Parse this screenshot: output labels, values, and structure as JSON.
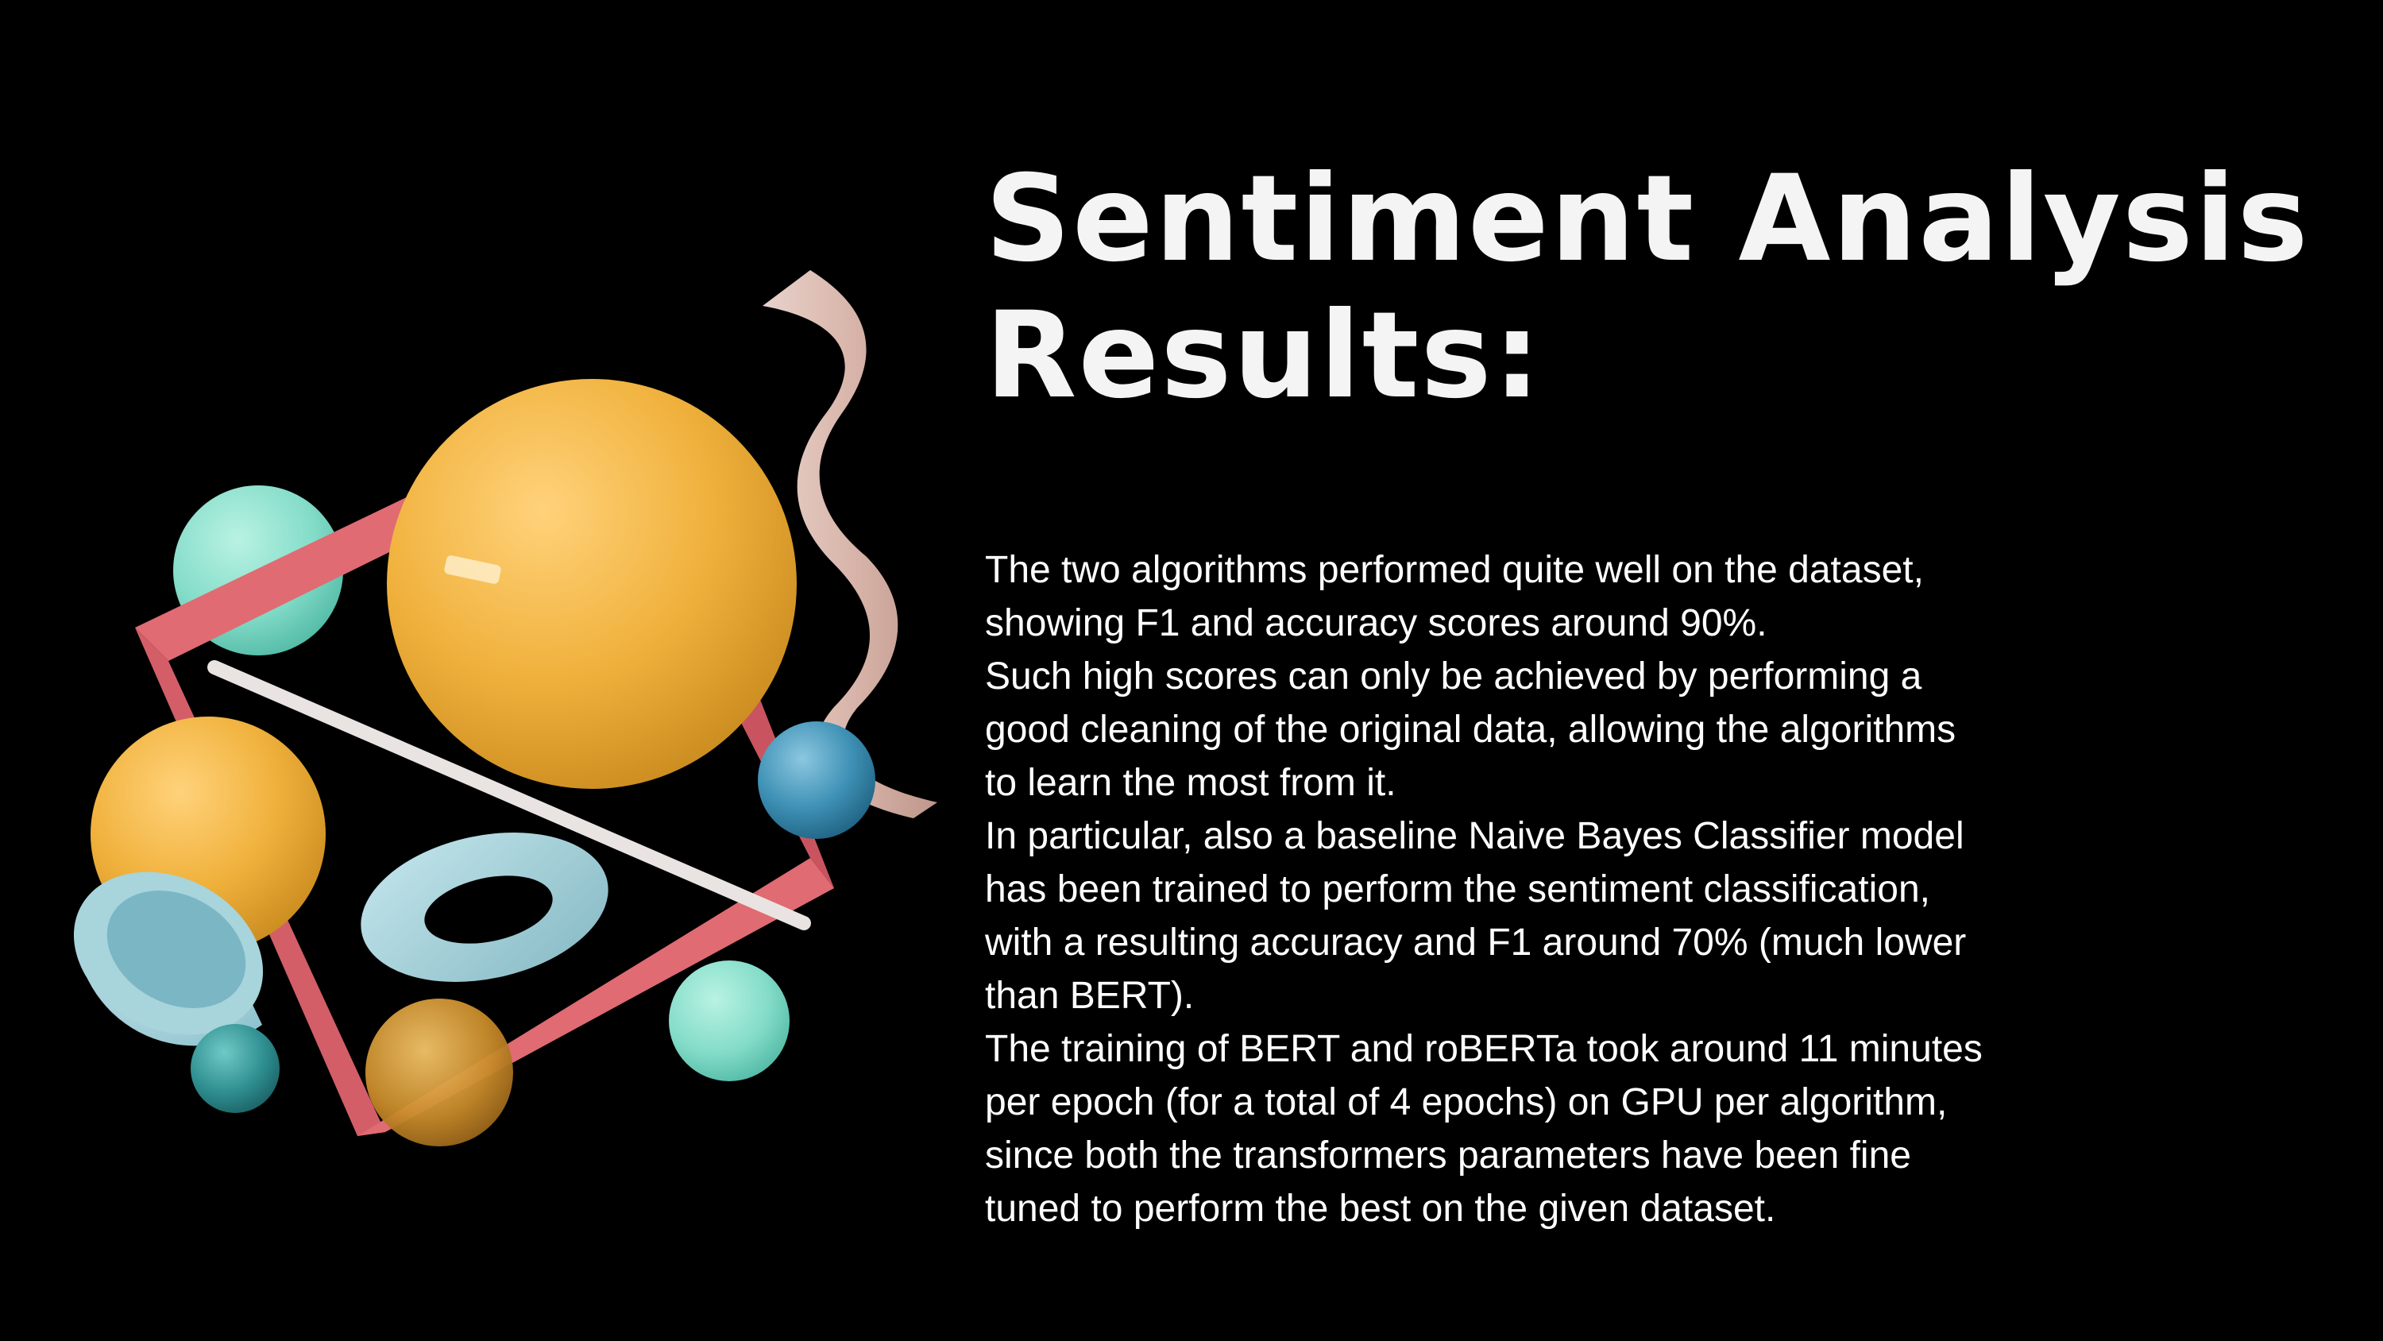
{
  "slide": {
    "title_lines": [
      "Sentiment Analysis",
      "Results:"
    ],
    "body_lines": [
      "The two algorithms performed quite well on the dataset,",
      "showing F1 and accuracy scores around 90%.",
      "Such high scores can only be achieved by performing a",
      "good cleaning of the original data, allowing the algorithms",
      "to learn the most from it.",
      "In particular, also a baseline Naive Bayes Classifier model",
      "has been trained to perform the sentiment classification,",
      "with a resulting accuracy and F1 around 70% (much lower",
      "than BERT).",
      "The training of BERT and roBERTa took around 11 minutes",
      "per epoch (for a total of 4 epochs) on GPU per algorithm,",
      "since both the transformers parameters have been fine",
      "tuned to perform the best on the given dataset."
    ]
  },
  "colors": {
    "background": "#000000",
    "text": "#ffffff",
    "orange": "#f0b13c",
    "mint": "#83dcc8",
    "pink": "#e06b73",
    "teal": "#2f8f90",
    "blue": "#3f92b6",
    "light_blue": "#a8d4dc",
    "beige": "#e9c9c0"
  },
  "decoration": {
    "description_icon": "abstract-3d-shapes-illustration"
  }
}
